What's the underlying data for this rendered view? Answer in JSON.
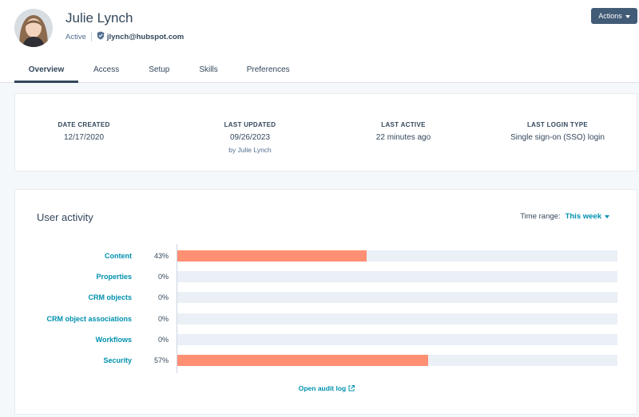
{
  "user": {
    "name": "Julie Lynch",
    "status": "Active",
    "email": "jlynch@hubspot.com"
  },
  "header": {
    "actions_label": "Actions"
  },
  "tabs": [
    {
      "label": "Overview",
      "active": true
    },
    {
      "label": "Access"
    },
    {
      "label": "Setup"
    },
    {
      "label": "Skills"
    },
    {
      "label": "Preferences"
    }
  ],
  "dates": [
    {
      "label": "DATE CREATED",
      "value": "12/17/2020",
      "sub": ""
    },
    {
      "label": "LAST UPDATED",
      "value": "09/26/2023",
      "sub": "by Julie Lynch"
    },
    {
      "label": "LAST ACTIVE",
      "value": "22 minutes ago",
      "sub": ""
    },
    {
      "label": "LAST LOGIN TYPE",
      "value": "Single sign-on (SSO) login",
      "sub": ""
    }
  ],
  "activity": {
    "title": "User activity",
    "time_range_label": "Time range:",
    "time_range_value": "This week",
    "bar_color": "#ff8f73",
    "rows": [
      {
        "label": "Content",
        "pct_text": "43%",
        "pct": 43
      },
      {
        "label": "Properties",
        "pct_text": "0%",
        "pct": 0
      },
      {
        "label": "CRM objects",
        "pct_text": "0%",
        "pct": 0
      },
      {
        "label": "CRM object associations",
        "pct_text": "0%",
        "pct": 0
      },
      {
        "label": "Workflows",
        "pct_text": "0%",
        "pct": 0
      },
      {
        "label": "Security",
        "pct_text": "57%",
        "pct": 57
      }
    ],
    "audit_link": "Open audit log"
  },
  "colors": {
    "accent": "#0091ae",
    "button": "#425b76",
    "text": "#33475b"
  }
}
